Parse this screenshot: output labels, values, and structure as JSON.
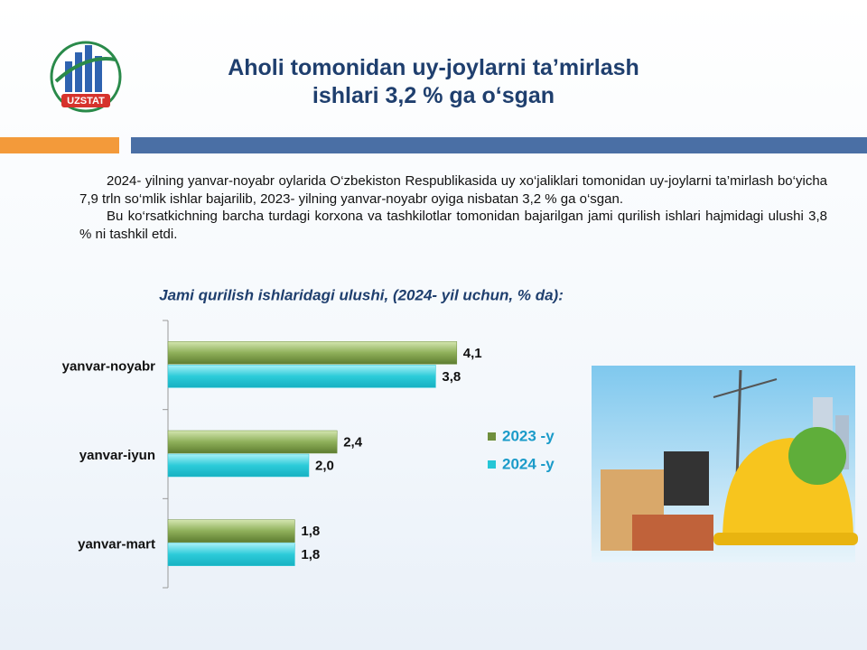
{
  "slide": {
    "logo_text": "UZSTAT",
    "title_lines": [
      "Aholi tomonidan uy-joylarni ta’mirlash",
      "ishlari 3,2 % ga o‘sgan"
    ],
    "paragraphs": [
      "2024- yilning yanvar-noyabr oylarida O‘zbekiston Respublikasida uy xo‘jaliklari tomonidan uy-joylarni ta’mirlash bo‘yicha 7,9 trln so‘mlik ishlar bajarilib, 2023- yilning yanvar-noyabr oyiga nisbatan 3,2 % ga o‘sgan.",
      "Bu ko‘rsatkichning barcha turdagi korxona va tashkilotlar tomonidan bajarilgan jami qurilish ishlari hajmidagi ulushi 3,8 % ni tashkil etdi."
    ]
  },
  "chart_data": {
    "type": "barh",
    "title": "Jami qurilish ishlaridagi ulushi, (2024- yil  uchun, % da):",
    "categories": [
      "yanvar-noyabr",
      "yanvar-iyun",
      "yanvar-mart"
    ],
    "xlim": [
      0,
      5
    ],
    "series": [
      {
        "name": "2023 -y",
        "color": "#6f8f3c",
        "values": [
          4.1,
          2.4,
          1.8
        ],
        "value_labels": [
          "4,1",
          "2,4",
          "1,8"
        ]
      },
      {
        "name": "2024 -y",
        "color": "#26c6d6",
        "values": [
          3.8,
          2.0,
          1.8
        ],
        "value_labels": [
          "3,8",
          "2,0",
          "1,8"
        ]
      }
    ]
  }
}
